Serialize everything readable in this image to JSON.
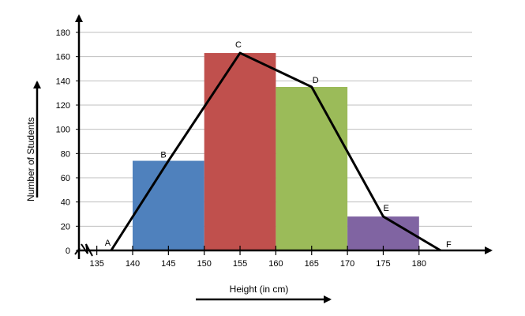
{
  "chart_data": {
    "type": "bar",
    "subtype": "histogram-with-frequency-polygon",
    "xlabel": "Height (in cm)",
    "ylabel": "Number of Students",
    "ylim": [
      0,
      180
    ],
    "yticks": [
      0,
      20,
      40,
      60,
      80,
      100,
      120,
      140,
      160,
      180
    ],
    "xticks": [
      135,
      140,
      145,
      150,
      155,
      160,
      165,
      170,
      175,
      180
    ],
    "grid": true,
    "axis_break_shown": true,
    "bars": [
      {
        "from": 140,
        "to": 150,
        "value": 74,
        "color": "#4F81BD"
      },
      {
        "from": 150,
        "to": 160,
        "value": 163,
        "color": "#C0504D"
      },
      {
        "from": 160,
        "to": 170,
        "value": 135,
        "color": "#9BBB59"
      },
      {
        "from": 170,
        "to": 180,
        "value": 28,
        "color": "#8064A2"
      }
    ],
    "polygon": [
      {
        "label": "A",
        "x": 137,
        "y": 0
      },
      {
        "label": "B",
        "x": 145,
        "y": 74
      },
      {
        "label": "C",
        "x": 155,
        "y": 163
      },
      {
        "label": "D",
        "x": 165,
        "y": 135
      },
      {
        "label": "E",
        "x": 175,
        "y": 28
      },
      {
        "label": "F",
        "x": 183,
        "y": 0
      }
    ]
  }
}
